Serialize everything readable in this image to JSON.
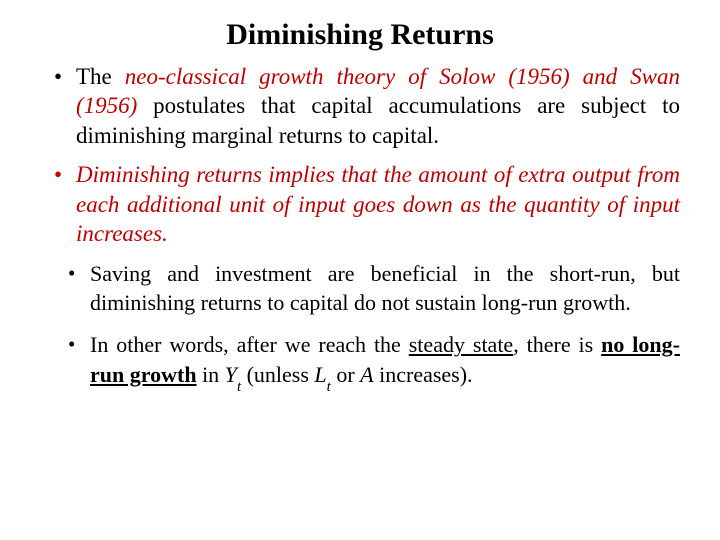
{
  "title": "Diminishing Returns",
  "colors": {
    "accent": "#c00000",
    "text": "#000000",
    "bg": "#ffffff"
  },
  "bullets": {
    "b1": {
      "pre": "The ",
      "highlight": "neo-classical growth theory of Solow (1956) and Swan (1956)",
      "post": " postulates that capital accumulations are subject to diminishing marginal returns to capital."
    },
    "b2": "Diminishing returns implies that the amount of extra output from each additional unit of input goes down as the quantity of input increases.",
    "b3": "Saving and investment are beneficial in the short-run, but diminishing returns to capital do not sustain long-run growth.",
    "b4": {
      "pre": "In other words, after we reach the ",
      "steady": "steady state",
      "mid1": ", there is ",
      "nolong": "no long-run growth",
      "mid2": " in ",
      "Y": "Y",
      "Yt": "t",
      "mid3": " (unless ",
      "L": "L",
      "Lt": "t",
      "mid4": " or ",
      "A": "A",
      "end": " increases)."
    }
  }
}
